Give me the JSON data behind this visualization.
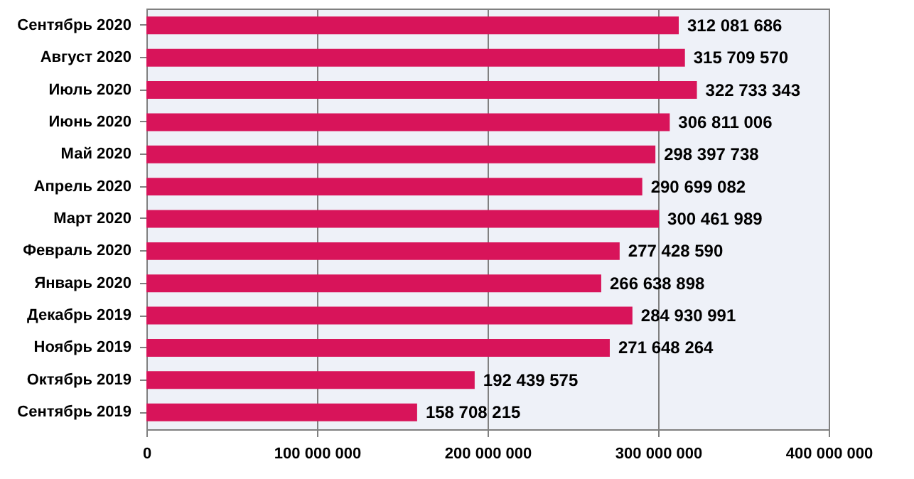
{
  "chart_data": {
    "type": "bar",
    "orientation": "horizontal",
    "categories": [
      "Сентябрь  2020",
      "Август  2020",
      "Июль  2020",
      "Июнь  2020",
      "Май  2020",
      "Апрель  2020",
      "Март  2020",
      "Февраль  2020",
      "Январь  2020",
      "Декабрь  2019",
      "Ноябрь  2019",
      "Октябрь  2019",
      "Сентябрь  2019"
    ],
    "values": [
      312081686,
      315709570,
      322733343,
      306811006,
      298397738,
      290699082,
      300461989,
      277428590,
      266638898,
      284930991,
      271648264,
      192439575,
      158708215
    ],
    "value_labels": [
      "312 081 686",
      "315 709 570",
      "322 733 343",
      "306 811 006",
      "298 397 738",
      "290 699 082",
      "300 461 989",
      "277 428 590",
      "266 638 898",
      "284 930 991",
      "271 648 264",
      "192 439 575",
      "158 708 215"
    ],
    "color": "#d8145a",
    "xlim": [
      0,
      400000000
    ],
    "xticks": [
      {
        "value": 0,
        "label": "0"
      },
      {
        "value": 100000000,
        "label": "100 000 000"
      },
      {
        "value": 200000000,
        "label": "200 000 000"
      },
      {
        "value": 300000000,
        "label": "300 000 000"
      },
      {
        "value": 400000000,
        "label": "400 000 000"
      }
    ],
    "grid": "x"
  }
}
